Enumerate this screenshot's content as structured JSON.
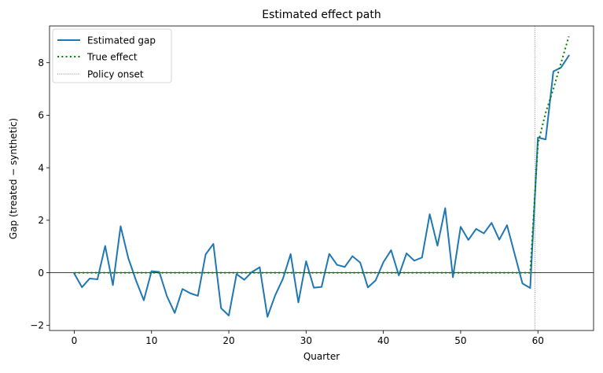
{
  "chart_data": {
    "type": "line",
    "title": "Estimated effect path",
    "xlabel": "Quarter",
    "ylabel": "Gap (treated − synthetic)",
    "xlim": [
      -3.2,
      67.2
    ],
    "ylim": [
      -2.2,
      9.4
    ],
    "xticks": [
      0,
      10,
      20,
      30,
      40,
      50,
      60
    ],
    "yticks": [
      -2,
      0,
      2,
      4,
      6,
      8
    ],
    "xtick_labels": [
      "0",
      "10",
      "20",
      "30",
      "40",
      "50",
      "60"
    ],
    "ytick_labels": [
      "−2",
      "0",
      "2",
      "4",
      "6",
      "8"
    ],
    "grid": false,
    "legend_position": "top-left",
    "zero_line": 0,
    "policy_onset_x": 59.6,
    "series": [
      {
        "name": "Estimated gap",
        "style": "solid",
        "color": "#1f77b4",
        "x": [
          0,
          1,
          2,
          3,
          4,
          5,
          6,
          7,
          8,
          9,
          10,
          11,
          12,
          13,
          14,
          15,
          16,
          17,
          18,
          19,
          20,
          21,
          22,
          23,
          24,
          25,
          26,
          27,
          28,
          29,
          30,
          31,
          32,
          33,
          34,
          35,
          36,
          37,
          38,
          39,
          40,
          41,
          42,
          43,
          44,
          45,
          46,
          47,
          48,
          49,
          50,
          51,
          52,
          53,
          54,
          55,
          56,
          57,
          58,
          59,
          60,
          61,
          62,
          63,
          64
        ],
        "values": [
          -0.03,
          -0.55,
          -0.22,
          -0.25,
          1.02,
          -0.47,
          1.77,
          0.55,
          -0.3,
          -1.05,
          0.06,
          0.03,
          -0.9,
          -1.53,
          -0.62,
          -0.78,
          -0.88,
          0.7,
          1.1,
          -1.35,
          -1.63,
          -0.05,
          -0.27,
          0.03,
          0.21,
          -1.68,
          -0.86,
          -0.23,
          0.71,
          -1.13,
          0.44,
          -0.57,
          -0.54,
          0.72,
          0.3,
          0.22,
          0.63,
          0.39,
          -0.56,
          -0.29,
          0.4,
          0.86,
          -0.1,
          0.74,
          0.46,
          0.58,
          2.23,
          1.03,
          2.46,
          -0.17,
          1.75,
          1.25,
          1.67,
          1.5,
          1.9,
          1.26,
          1.81,
          0.7,
          -0.41,
          -0.58,
          5.15,
          5.08,
          7.67,
          7.82,
          8.27
        ]
      },
      {
        "name": "True effect",
        "style": "dotted",
        "color": "#008000",
        "x": [
          0,
          59,
          60,
          61,
          62,
          63,
          64
        ],
        "values": [
          0,
          0,
          4.9,
          6.1,
          7.0,
          8.0,
          9.0
        ]
      }
    ],
    "reference_lines": [
      {
        "name": "Policy onset",
        "style": "dotted",
        "color": "#808080"
      }
    ]
  }
}
